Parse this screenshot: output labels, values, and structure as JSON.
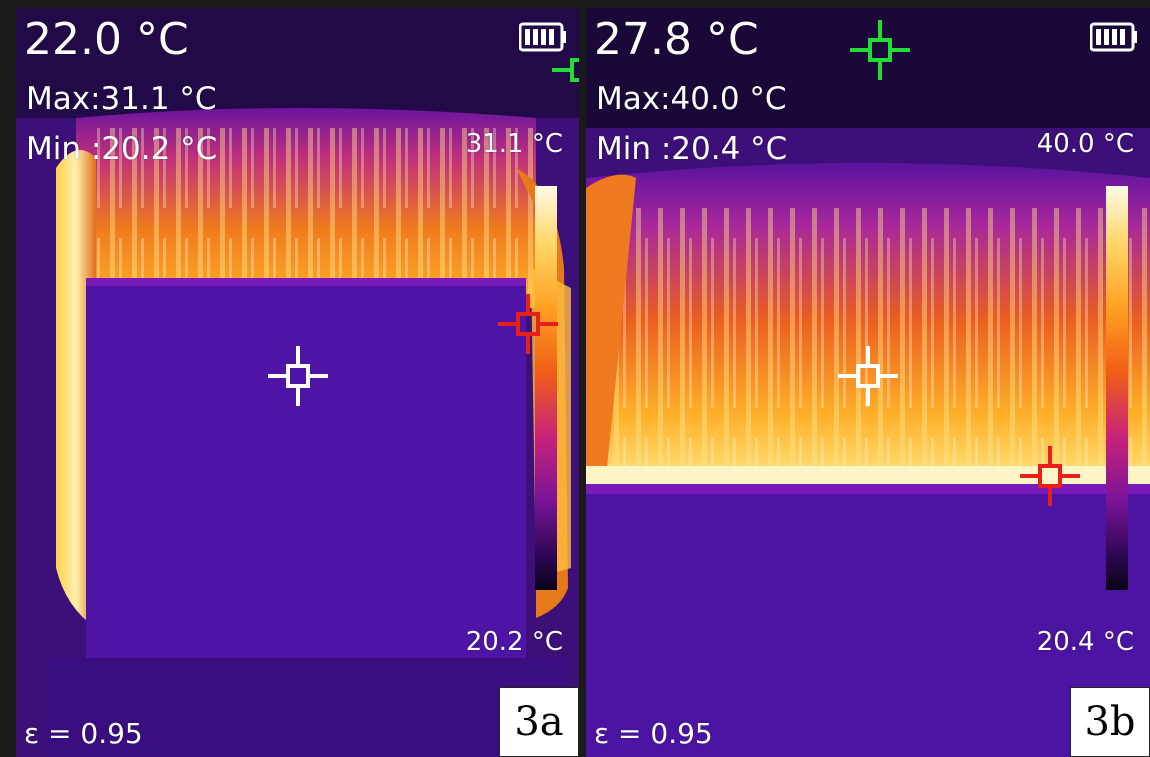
{
  "panels": [
    {
      "current_temp": "22.0 °C",
      "max": "Max:31.1 °C",
      "min": "Min :20.2 °C",
      "scale_high": "31.1 °C",
      "scale_low": "20.2 °C",
      "emissivity": "ε = 0.95",
      "label": "3a",
      "battery_level": 1.0
    },
    {
      "current_temp": "27.8 °C",
      "max": "Max:40.0 °C",
      "min": "Min :20.4 °C",
      "scale_high": "40.0 °C",
      "scale_low": "20.4 °C",
      "emissivity": "ε = 0.95",
      "label": "3b",
      "battery_level": 1.0
    }
  ],
  "colors": {
    "background": "#1a1a1a",
    "center_marker": "#ffffff",
    "hot_marker": "#e8201a",
    "cold_marker": "#22dd33"
  },
  "icons": [
    "battery-icon",
    "center-crosshair-icon",
    "hot-spot-crosshair-icon",
    "cold-spot-crosshair-icon",
    "temperature-scale-bar"
  ]
}
